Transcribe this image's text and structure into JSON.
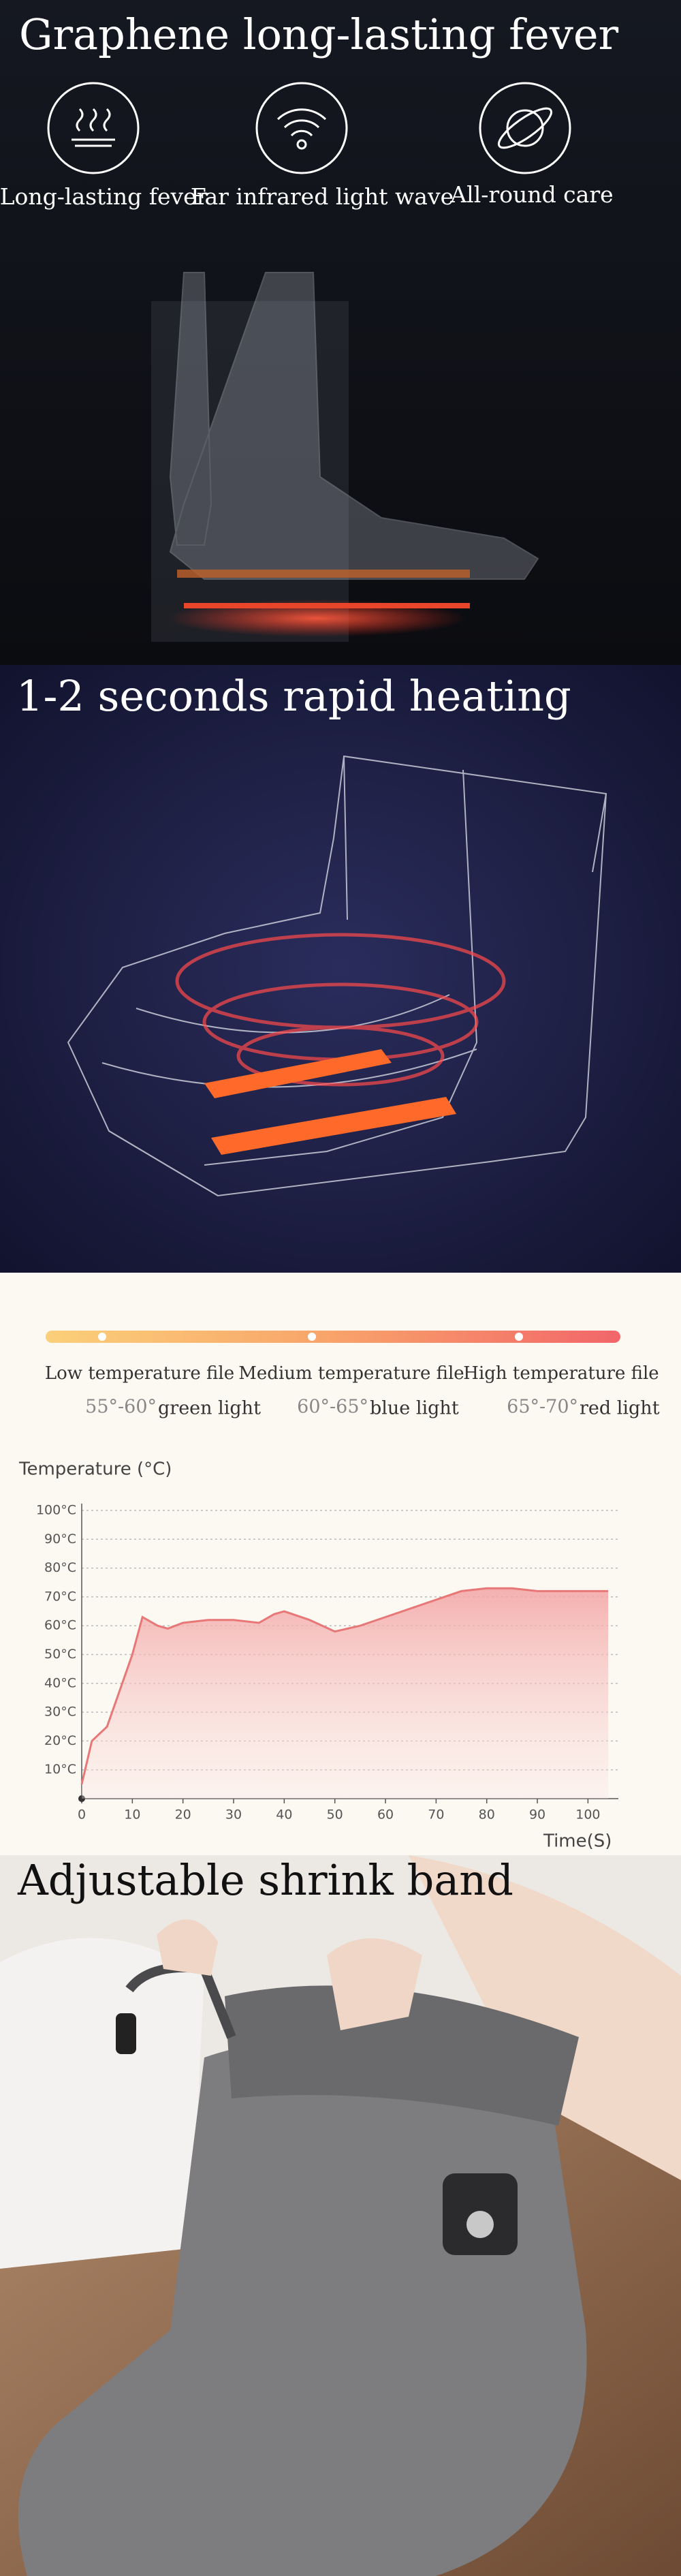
{
  "header": {
    "title": "Graphene long-lasting fever"
  },
  "features": [
    "Long-lasting fever",
    "Far infrared light wave",
    "All-round care"
  ],
  "heating": {
    "title": "1-2 seconds rapid heating"
  },
  "levels": [
    {
      "name": "Low temperature file",
      "range": "55°-60°",
      "light": "green light"
    },
    {
      "name": "Medium temperature file",
      "range": "60°-65°",
      "light": "blue light"
    },
    {
      "name": "High temperature file",
      "range": "65°-70°",
      "light": "red light"
    }
  ],
  "chart_data": {
    "type": "area",
    "y_label": "Temperature (°C)",
    "x_label": "Time(S)",
    "x": [
      0,
      2,
      5,
      8,
      10,
      12,
      15,
      17,
      20,
      25,
      30,
      35,
      38,
      40,
      45,
      50,
      55,
      60,
      65,
      70,
      75,
      80,
      85,
      90,
      95,
      100,
      104
    ],
    "values": [
      5,
      20,
      25,
      40,
      50,
      63,
      60,
      59,
      61,
      62,
      62,
      61,
      64,
      65,
      62,
      58,
      60,
      63,
      66,
      69,
      72,
      73,
      73,
      72,
      72,
      72,
      72
    ],
    "color": "#e87878",
    "xlim": [
      0,
      106
    ],
    "ylim": [
      0,
      100
    ],
    "xticks": [
      0,
      10,
      20,
      30,
      40,
      50,
      60,
      70,
      80,
      90,
      100
    ],
    "yticks": [
      {
        "value": 10,
        "label": "10°C"
      },
      {
        "value": 20,
        "label": "20°C"
      },
      {
        "value": 30,
        "label": "30°C"
      },
      {
        "value": 40,
        "label": "40°C"
      },
      {
        "value": 50,
        "label": "50°C"
      },
      {
        "value": 60,
        "label": "60°C"
      },
      {
        "value": 70,
        "label": "70°C"
      },
      {
        "value": 80,
        "label": "80°C"
      },
      {
        "value": 90,
        "label": "90°C"
      },
      {
        "value": 100,
        "label": "100°C"
      }
    ],
    "grid": true
  },
  "band": {
    "title": "Adjustable shrink band"
  }
}
